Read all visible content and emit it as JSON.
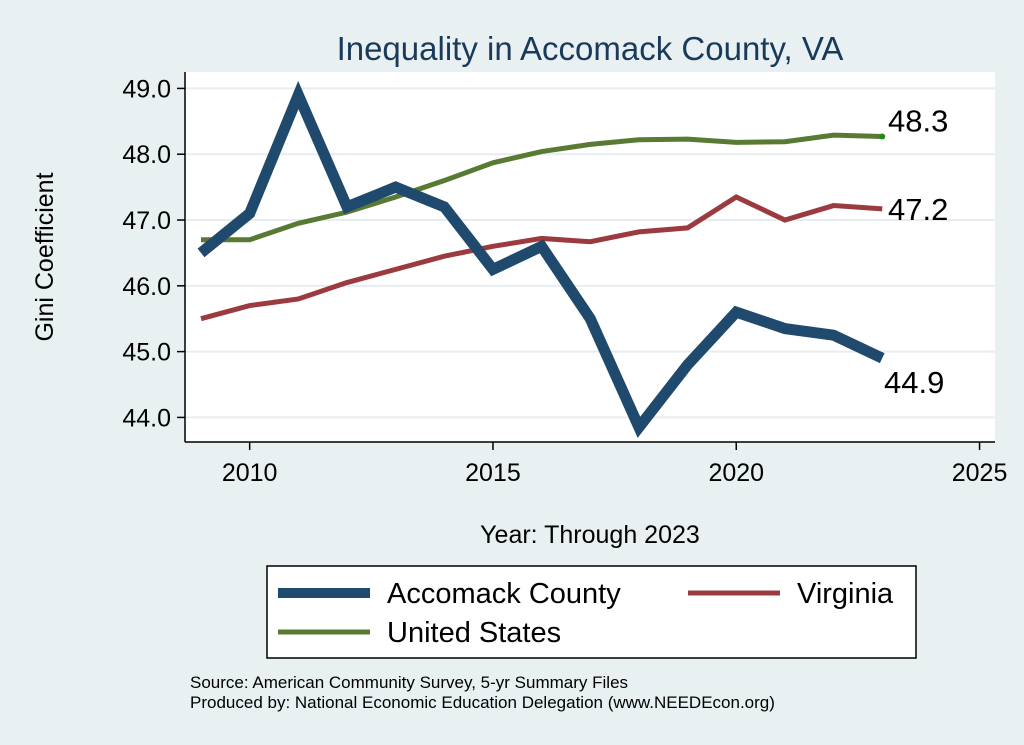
{
  "chart_data": {
    "type": "line",
    "title": "Inequality in Accomack County, VA",
    "xlabel": "Year: Through 2023",
    "ylabel": "Gini Coefficient",
    "xlim": [
      2009,
      2025.5
    ],
    "ylim": [
      43.6,
      49.3
    ],
    "x_ticks": [
      2010,
      2015,
      2020,
      2025
    ],
    "y_ticks": [
      44.0,
      45.0,
      46.0,
      47.0,
      48.0,
      49.0
    ],
    "y_tick_labels": [
      "44.0",
      "45.0",
      "46.0",
      "47.0",
      "48.0",
      "49.0"
    ],
    "grid": "horizontal",
    "legend_position": "bottom",
    "series": [
      {
        "name": "Accomack County",
        "color": "#1f4a6e",
        "x": [
          2009,
          2010,
          2011,
          2012,
          2013,
          2014,
          2015,
          2016,
          2017,
          2018,
          2019,
          2020,
          2021,
          2022,
          2023
        ],
        "values": [
          46.5,
          47.1,
          48.9,
          47.2,
          47.5,
          47.2,
          46.25,
          46.6,
          45.5,
          43.85,
          44.8,
          45.6,
          45.35,
          45.25,
          44.9
        ],
        "end_label": "44.9"
      },
      {
        "name": "Virginia",
        "color": "#9b3b3f",
        "x": [
          2009,
          2010,
          2011,
          2012,
          2013,
          2014,
          2015,
          2016,
          2017,
          2018,
          2019,
          2020,
          2021,
          2022,
          2023
        ],
        "values": [
          45.5,
          45.7,
          45.8,
          46.05,
          46.25,
          46.45,
          46.6,
          46.72,
          46.67,
          46.82,
          46.88,
          47.35,
          47.0,
          47.22,
          47.17
        ],
        "end_label": "47.2"
      },
      {
        "name": "United States",
        "color": "#597a32",
        "x": [
          2009,
          2010,
          2011,
          2012,
          2013,
          2014,
          2015,
          2016,
          2017,
          2018,
          2019,
          2020,
          2021,
          2022,
          2023
        ],
        "values": [
          46.7,
          46.7,
          46.95,
          47.12,
          47.35,
          47.6,
          47.87,
          48.04,
          48.15,
          48.22,
          48.23,
          48.18,
          48.19,
          48.29,
          48.27
        ],
        "end_label": "48.3"
      }
    ],
    "notes": [
      "Source: American Community Survey, 5-yr Summary Files",
      "Produced by: National Economic Education Delegation (www.NEEDEcon.org)"
    ]
  }
}
